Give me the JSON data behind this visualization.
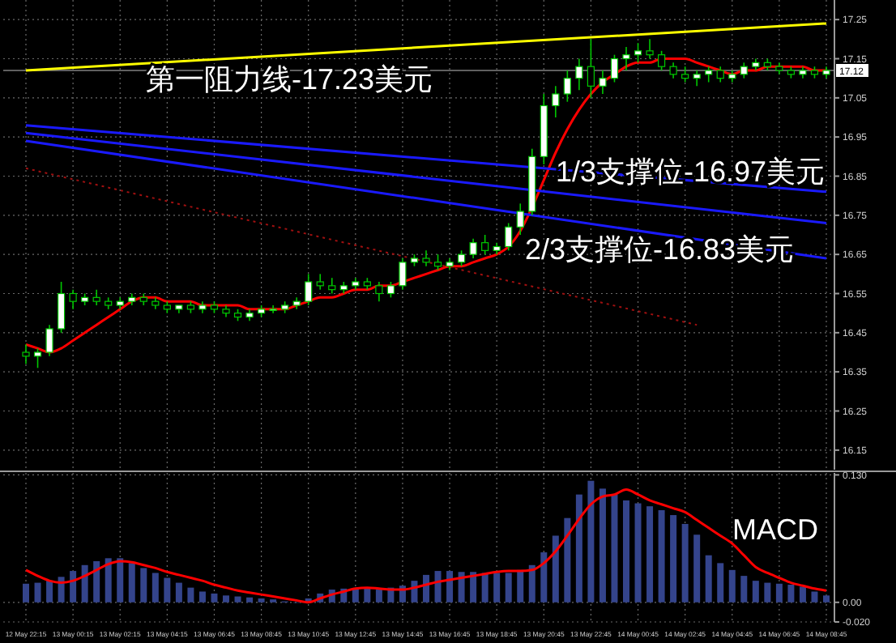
{
  "chart_data": [
    {
      "type": "candlestick",
      "color": "#00c800",
      "categories": [
        null,
        null,
        null,
        null,
        null,
        null,
        null,
        null,
        null,
        null,
        null,
        null,
        null,
        null,
        null,
        null,
        null,
        null,
        null,
        null,
        null,
        null,
        null,
        null,
        null,
        null,
        null,
        null,
        null,
        null,
        null,
        null,
        null,
        null,
        null,
        null,
        null,
        null,
        null,
        null,
        null,
        null,
        null,
        null,
        null,
        null,
        null,
        null,
        null,
        null,
        null,
        null,
        null,
        null,
        null,
        null,
        null,
        null,
        null,
        null,
        null,
        null,
        null,
        null,
        null,
        null,
        null,
        null,
        null
      ],
      "ohlc": [
        [
          16.4,
          16.42,
          16.37,
          16.39
        ],
        [
          16.39,
          16.41,
          16.36,
          16.4
        ],
        [
          16.4,
          16.47,
          16.39,
          16.46
        ],
        [
          16.46,
          16.58,
          16.45,
          16.55
        ],
        [
          16.55,
          16.56,
          16.51,
          16.53
        ],
        [
          16.53,
          16.55,
          16.52,
          16.54
        ],
        [
          16.54,
          16.56,
          16.52,
          16.53
        ],
        [
          16.53,
          16.54,
          16.51,
          16.52
        ],
        [
          16.52,
          16.54,
          16.51,
          16.53
        ],
        [
          16.53,
          16.55,
          16.52,
          16.54
        ],
        [
          16.54,
          16.55,
          16.52,
          16.53
        ],
        [
          16.53,
          16.54,
          16.51,
          16.52
        ],
        [
          16.52,
          16.53,
          16.5,
          16.51
        ],
        [
          16.51,
          16.52,
          16.5,
          16.52
        ],
        [
          16.52,
          16.53,
          16.5,
          16.51
        ],
        [
          16.51,
          16.53,
          16.5,
          16.52
        ],
        [
          16.52,
          16.53,
          16.5,
          16.51
        ],
        [
          16.51,
          16.52,
          16.49,
          16.5
        ],
        [
          16.5,
          16.51,
          16.48,
          16.49
        ],
        [
          16.49,
          16.51,
          16.48,
          16.5
        ],
        [
          16.5,
          16.52,
          16.49,
          16.51
        ],
        [
          16.51,
          16.52,
          16.5,
          16.51
        ],
        [
          16.51,
          16.53,
          16.5,
          16.52
        ],
        [
          16.52,
          16.54,
          16.51,
          16.53
        ],
        [
          16.53,
          16.6,
          16.52,
          16.58
        ],
        [
          16.58,
          16.6,
          16.56,
          16.57
        ],
        [
          16.57,
          16.59,
          16.55,
          16.56
        ],
        [
          16.56,
          16.58,
          16.55,
          16.57
        ],
        [
          16.57,
          16.59,
          16.56,
          16.58
        ],
        [
          16.58,
          16.59,
          16.56,
          16.57
        ],
        [
          16.57,
          16.58,
          16.53,
          16.55
        ],
        [
          16.55,
          16.58,
          16.54,
          16.57
        ],
        [
          16.57,
          16.64,
          16.56,
          16.63
        ],
        [
          16.63,
          16.65,
          16.62,
          16.64
        ],
        [
          16.64,
          16.66,
          16.62,
          16.63
        ],
        [
          16.63,
          16.65,
          16.61,
          16.62
        ],
        [
          16.62,
          16.64,
          16.61,
          16.63
        ],
        [
          16.63,
          16.66,
          16.62,
          16.65
        ],
        [
          16.65,
          16.69,
          16.64,
          16.68
        ],
        [
          16.68,
          16.7,
          16.65,
          16.66
        ],
        [
          16.66,
          16.68,
          16.65,
          16.67
        ],
        [
          16.67,
          16.73,
          16.66,
          16.72
        ],
        [
          16.72,
          16.78,
          16.7,
          16.76
        ],
        [
          16.76,
          16.92,
          16.75,
          16.9
        ],
        [
          16.9,
          17.06,
          16.88,
          17.03
        ],
        [
          17.03,
          17.08,
          17.0,
          17.06
        ],
        [
          17.06,
          17.12,
          17.04,
          17.1
        ],
        [
          17.1,
          17.15,
          17.07,
          17.13
        ],
        [
          17.13,
          17.2,
          17.05,
          17.08
        ],
        [
          17.08,
          17.12,
          17.06,
          17.1
        ],
        [
          17.1,
          17.16,
          17.09,
          17.15
        ],
        [
          17.15,
          17.18,
          17.12,
          17.16
        ],
        [
          17.16,
          17.19,
          17.14,
          17.17
        ],
        [
          17.17,
          17.2,
          17.15,
          17.16
        ],
        [
          17.16,
          17.17,
          17.12,
          17.13
        ],
        [
          17.13,
          17.14,
          17.1,
          17.11
        ],
        [
          17.11,
          17.13,
          17.09,
          17.1
        ],
        [
          17.1,
          17.12,
          17.08,
          17.11
        ],
        [
          17.11,
          17.13,
          17.09,
          17.12
        ],
        [
          17.12,
          17.13,
          17.09,
          17.1
        ],
        [
          17.1,
          17.12,
          17.09,
          17.11
        ],
        [
          17.11,
          17.14,
          17.1,
          17.13
        ],
        [
          17.13,
          17.15,
          17.12,
          17.14
        ],
        [
          17.14,
          17.15,
          17.12,
          17.13
        ],
        [
          17.13,
          17.14,
          17.11,
          17.12
        ],
        [
          17.12,
          17.13,
          17.1,
          17.11
        ],
        [
          17.11,
          17.13,
          17.1,
          17.12
        ],
        [
          17.12,
          17.13,
          17.1,
          17.11
        ],
        [
          17.11,
          17.13,
          17.1,
          17.12
        ]
      ],
      "series": [
        {
          "type": "line",
          "color": "#ff0000",
          "values": [
            16.42,
            16.41,
            16.4,
            16.41,
            16.43,
            16.45,
            16.47,
            16.49,
            16.51,
            16.53,
            16.54,
            16.54,
            16.53,
            16.53,
            16.53,
            16.52,
            16.52,
            16.52,
            16.52,
            16.51,
            16.51,
            16.51,
            16.51,
            16.52,
            16.53,
            16.54,
            16.54,
            16.55,
            16.56,
            16.56,
            16.57,
            16.57,
            16.58,
            16.59,
            16.6,
            16.61,
            16.62,
            16.62,
            16.63,
            16.64,
            16.65,
            16.67,
            16.71,
            16.77,
            16.84,
            16.91,
            16.97,
            17.02,
            17.06,
            17.09,
            17.11,
            17.13,
            17.14,
            17.14,
            17.15,
            17.15,
            17.15,
            17.14,
            17.13,
            17.12,
            17.11,
            17.12,
            17.12,
            17.13,
            17.13,
            17.13,
            17.13,
            17.12,
            17.12
          ]
        },
        {
          "type": "line",
          "color": "#ffff00",
          "values": [
            17.12,
            null,
            null,
            null,
            null,
            null,
            null,
            null,
            null,
            null,
            null,
            null,
            null,
            null,
            null,
            null,
            null,
            null,
            null,
            null,
            null,
            null,
            null,
            null,
            null,
            null,
            null,
            null,
            null,
            null,
            null,
            null,
            null,
            null,
            null,
            null,
            null,
            null,
            null,
            null,
            null,
            null,
            null,
            null,
            null,
            null,
            null,
            null,
            null,
            null,
            null,
            null,
            null,
            null,
            null,
            null,
            null,
            null,
            null,
            null,
            null,
            null,
            null,
            null,
            null,
            null,
            null,
            null,
            17.24
          ]
        },
        {
          "type": "line",
          "color": "#1a1aff",
          "values": [
            16.98,
            null,
            null,
            null,
            null,
            null,
            null,
            null,
            null,
            null,
            null,
            null,
            null,
            null,
            null,
            null,
            null,
            null,
            null,
            null,
            null,
            null,
            null,
            null,
            null,
            null,
            null,
            null,
            null,
            null,
            null,
            null,
            null,
            null,
            null,
            null,
            null,
            null,
            null,
            null,
            null,
            null,
            null,
            null,
            null,
            null,
            null,
            null,
            null,
            null,
            null,
            null,
            null,
            null,
            null,
            null,
            null,
            null,
            null,
            null,
            null,
            null,
            null,
            null,
            null,
            null,
            null,
            null,
            16.81
          ]
        },
        {
          "type": "line",
          "color": "#1a1aff",
          "values": [
            16.96,
            null,
            null,
            null,
            null,
            null,
            null,
            null,
            null,
            null,
            null,
            null,
            null,
            null,
            null,
            null,
            null,
            null,
            null,
            null,
            null,
            null,
            null,
            null,
            null,
            null,
            null,
            null,
            null,
            null,
            null,
            null,
            null,
            null,
            null,
            null,
            null,
            null,
            null,
            null,
            null,
            null,
            null,
            null,
            null,
            null,
            null,
            null,
            null,
            null,
            null,
            null,
            null,
            null,
            null,
            null,
            null,
            null,
            null,
            null,
            null,
            null,
            null,
            null,
            null,
            null,
            null,
            null,
            16.73
          ]
        },
        {
          "type": "line",
          "color": "#1a1aff",
          "values": [
            16.94,
            null,
            null,
            null,
            null,
            null,
            null,
            null,
            null,
            null,
            null,
            null,
            null,
            null,
            null,
            null,
            null,
            null,
            null,
            null,
            null,
            null,
            null,
            null,
            null,
            null,
            null,
            null,
            null,
            null,
            null,
            null,
            null,
            null,
            null,
            null,
            null,
            null,
            null,
            null,
            null,
            null,
            null,
            null,
            null,
            null,
            null,
            null,
            null,
            null,
            null,
            null,
            null,
            null,
            null,
            null,
            null,
            null,
            null,
            null,
            null,
            null,
            null,
            null,
            null,
            null,
            null,
            null,
            16.64
          ]
        },
        {
          "type": "line",
          "color": "#a01010",
          "line_style": "dotted",
          "values": [
            16.87,
            null,
            null,
            null,
            null,
            null,
            null,
            null,
            null,
            null,
            null,
            null,
            null,
            null,
            null,
            null,
            null,
            null,
            null,
            null,
            null,
            null,
            null,
            null,
            null,
            null,
            null,
            null,
            null,
            null,
            null,
            null,
            null,
            null,
            null,
            null,
            null,
            null,
            null,
            null,
            null,
            null,
            null,
            null,
            null,
            null,
            null,
            null,
            null,
            null,
            null,
            null,
            null,
            null,
            null,
            null,
            null,
            16.47,
            null,
            null,
            null,
            null,
            null,
            null,
            null,
            null,
            null,
            null,
            null
          ]
        }
      ],
      "ylim": [
        16.1,
        17.3
      ],
      "yticks": [
        16.15,
        16.25,
        16.35,
        16.45,
        16.55,
        16.65,
        16.75,
        16.85,
        16.95,
        17.05,
        17.15,
        17.25
      ],
      "grid": true,
      "tick_labels": "y",
      "ref_lines": [
        {
          "axis": "y",
          "value": 17.12,
          "label": "17.12",
          "color": "#808080"
        }
      ],
      "annotations": [
        "第一阻力线-17.23美元",
        "1/3支撑位-16.97美元",
        "2/3支撑位-16.83美元"
      ]
    },
    {
      "type": "bar",
      "categories": [
        "12 May 22:15",
        null,
        null,
        null,
        "13 May 00:15",
        null,
        null,
        null,
        "13 May 02:15",
        null,
        null,
        null,
        "13 May 04:15",
        null,
        null,
        null,
        "13 May 06:45",
        null,
        null,
        null,
        "13 May 08:45",
        null,
        null,
        null,
        "13 May 10:45",
        null,
        null,
        null,
        "13 May 12:45",
        null,
        null,
        null,
        "13 May 14:45",
        null,
        null,
        null,
        "13 May 16:45",
        null,
        null,
        null,
        "13 May 18:45",
        null,
        null,
        null,
        "13 May 20:45",
        null,
        null,
        null,
        "13 May 22:45",
        null,
        null,
        null,
        "14 May 00:45",
        null,
        null,
        null,
        "14 May 02:45",
        null,
        null,
        null,
        "14 May 04:45",
        null,
        null,
        null,
        "14 May 06:45",
        null,
        null,
        null,
        "14 May 08:45"
      ],
      "series": [
        {
          "type": "bar",
          "color": "#34448c",
          "values": [
            0.019,
            0.02,
            0.022,
            0.026,
            0.032,
            0.038,
            0.042,
            0.045,
            0.045,
            0.04,
            0.035,
            0.03,
            0.025,
            0.02,
            0.015,
            0.011,
            0.009,
            0.007,
            0.006,
            0.005,
            0.004,
            0.003,
            0.001,
            0.0,
            0.004,
            0.009,
            0.013,
            0.014,
            0.014,
            0.014,
            0.013,
            0.015,
            0.017,
            0.022,
            0.028,
            0.032,
            0.032,
            0.031,
            0.031,
            0.03,
            0.03,
            0.03,
            0.033,
            0.038,
            0.051,
            0.068,
            0.086,
            0.11,
            0.124,
            0.116,
            0.11,
            0.104,
            0.101,
            0.098,
            0.094,
            0.089,
            0.08,
            0.069,
            0.048,
            0.04,
            0.033,
            0.027,
            0.022,
            0.02,
            0.019,
            0.018,
            0.016,
            0.011,
            0.007
          ]
        },
        {
          "type": "line",
          "color": "#ff0000",
          "values": [
            0.033,
            0.027,
            0.022,
            0.02,
            0.022,
            0.027,
            0.033,
            0.039,
            0.042,
            0.041,
            0.038,
            0.035,
            0.031,
            0.028,
            0.025,
            0.022,
            0.018,
            0.015,
            0.012,
            0.01,
            0.008,
            0.006,
            0.004,
            0.002,
            0.0,
            0.004,
            0.008,
            0.011,
            0.014,
            0.015,
            0.014,
            0.013,
            0.013,
            0.015,
            0.018,
            0.021,
            0.023,
            0.025,
            0.027,
            0.029,
            0.031,
            0.032,
            0.032,
            0.033,
            0.04,
            0.052,
            0.068,
            0.085,
            0.1,
            0.108,
            0.11,
            0.115,
            0.11,
            0.104,
            0.1,
            0.096,
            0.092,
            0.084,
            0.076,
            0.068,
            0.06,
            0.048,
            0.036,
            0.03,
            0.025,
            0.02,
            0.017,
            0.014,
            0.012
          ]
        }
      ],
      "ylim": [
        -0.02,
        0.132
      ],
      "yticks": [
        {
          "value": 0.13,
          "label": "0.130"
        },
        {
          "value": 0,
          "label": "0.00"
        },
        {
          "value": -0.02,
          "label": "-0.020"
        }
      ],
      "grid": true,
      "annotations": [
        "MACD"
      ]
    }
  ]
}
